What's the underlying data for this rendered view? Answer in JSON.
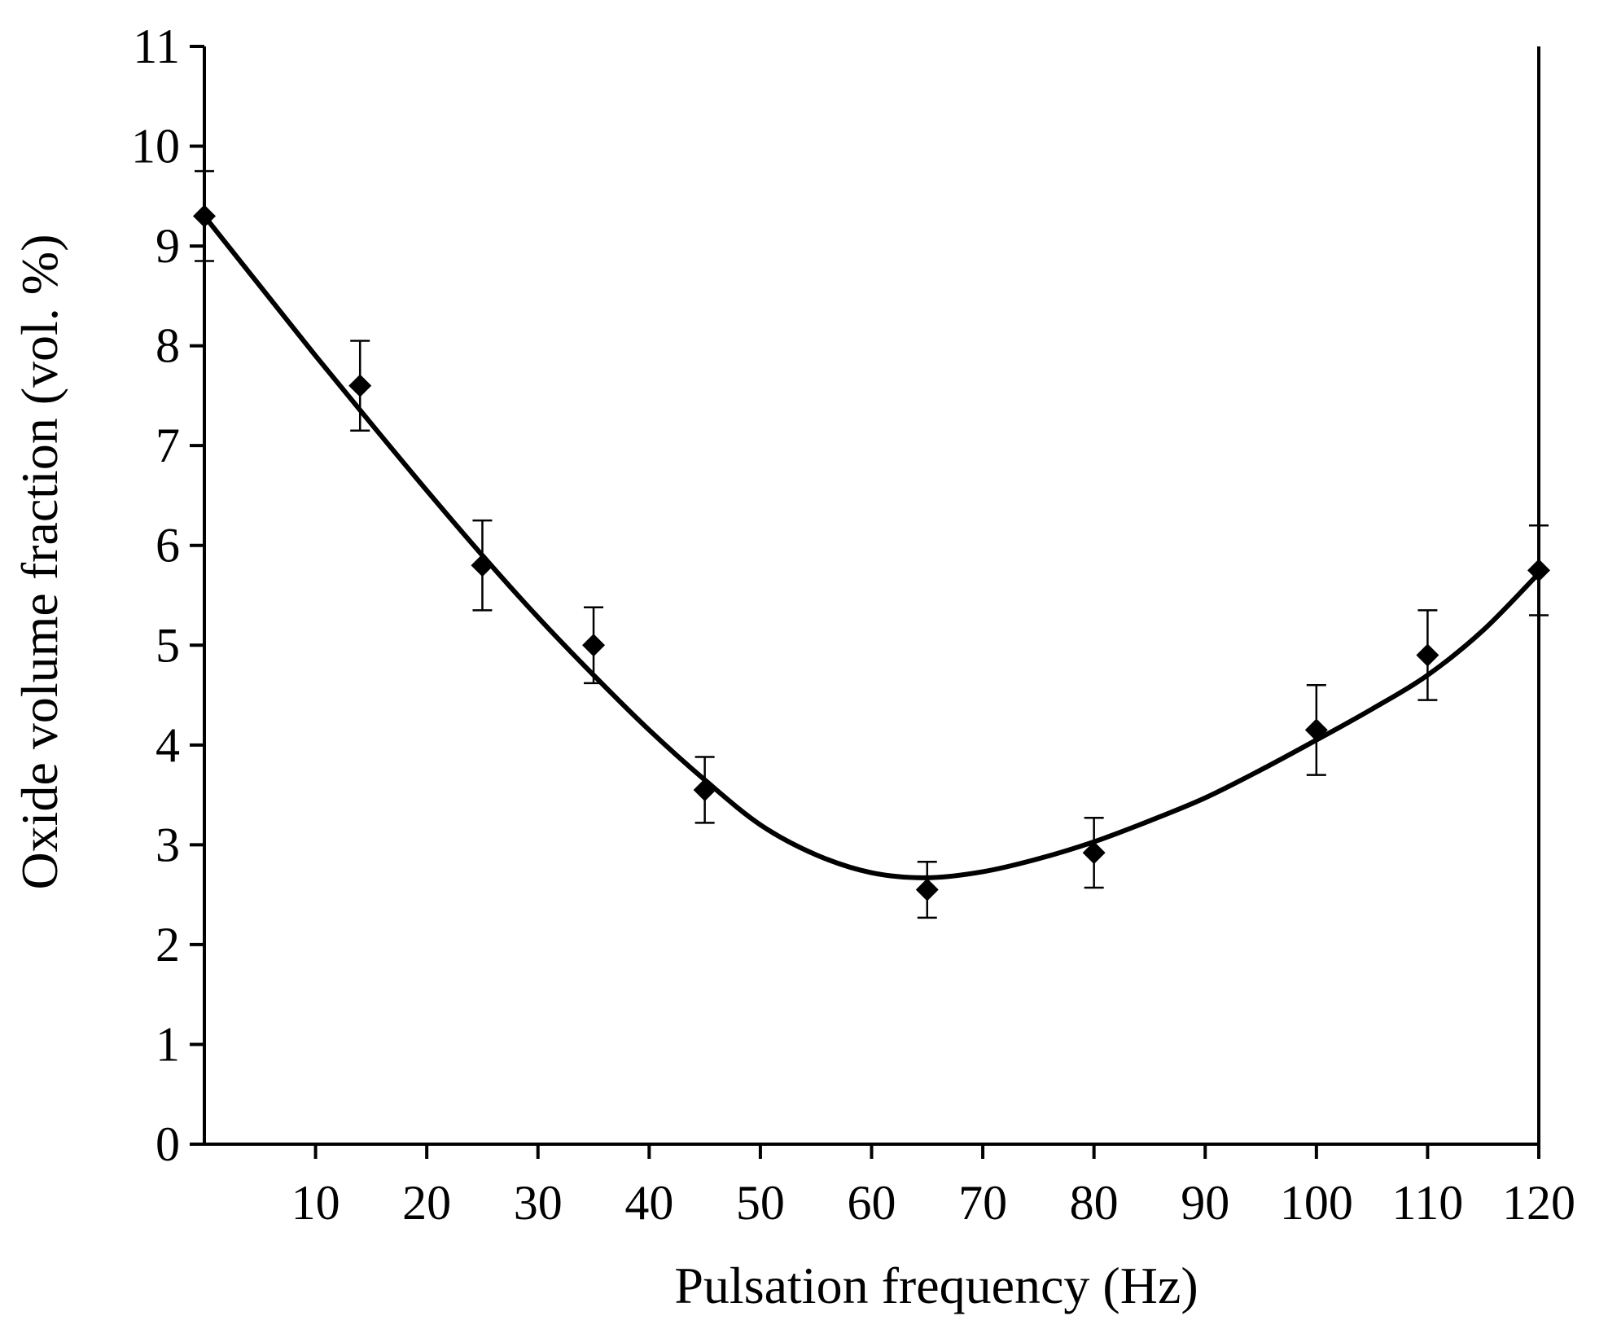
{
  "chart_data": {
    "type": "scatter",
    "xlabel": "Pulsation frequency (Hz)",
    "ylabel": "Oxide volume fraction (vol. %)",
    "xlim": [
      0,
      120
    ],
    "ylim": [
      0,
      11
    ],
    "x_ticks": [
      "10",
      "20",
      "30",
      "40",
      "50",
      "60",
      "70",
      "80",
      "90",
      "100",
      "110",
      "120"
    ],
    "x_tick_values": [
      10,
      20,
      30,
      40,
      50,
      60,
      70,
      80,
      90,
      100,
      110,
      120
    ],
    "y_ticks": [
      "0",
      "1",
      "2",
      "3",
      "4",
      "5",
      "6",
      "7",
      "8",
      "9",
      "10",
      "11"
    ],
    "y_tick_values": [
      0,
      1,
      2,
      3,
      4,
      5,
      6,
      7,
      8,
      9,
      10,
      11
    ],
    "grid": false,
    "series": [
      {
        "marker": "diamond",
        "color": "#000000",
        "x": [
          0,
          14,
          25,
          35,
          45,
          65,
          80,
          100,
          110,
          120
        ],
        "y": [
          9.3,
          7.6,
          5.8,
          5.0,
          3.55,
          2.55,
          2.92,
          4.15,
          4.9,
          5.75
        ],
        "error": [
          0.45,
          0.45,
          0.45,
          0.38,
          0.33,
          0.28,
          0.35,
          0.45,
          0.45,
          0.45
        ]
      }
    ],
    "fit_curve": {
      "color": "#000000",
      "x": [
        0,
        5,
        10,
        15,
        20,
        25,
        30,
        35,
        40,
        45,
        50,
        55,
        60,
        65,
        70,
        75,
        80,
        85,
        90,
        95,
        100,
        105,
        110,
        115,
        120
      ],
      "y": [
        9.3,
        8.6,
        7.9,
        7.22,
        6.55,
        5.9,
        5.28,
        4.7,
        4.15,
        3.65,
        3.2,
        2.9,
        2.72,
        2.67,
        2.73,
        2.86,
        3.03,
        3.24,
        3.47,
        3.75,
        4.05,
        4.36,
        4.7,
        5.15,
        5.72
      ]
    }
  }
}
